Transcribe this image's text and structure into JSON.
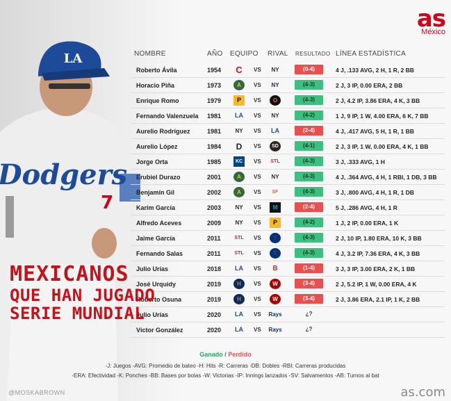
{
  "brand": {
    "logo": "as",
    "edition": "México",
    "footer": "as.com"
  },
  "credit": "@MOSKABROWN",
  "headers": {
    "name": "NOMBRE",
    "year": "AÑO",
    "team": "EQUIPO",
    "rival": "RIVAL",
    "result": "RESULTADO",
    "stats": "LÍNEA ESTADÍSTICA"
  },
  "vs": "VS",
  "rows": [
    {
      "name": "Roberto Ávila",
      "year": "1954",
      "team": "C",
      "rival": "NY",
      "result": "(0-4)",
      "status": "loss",
      "stats": "4 J, .133 AVG, 2 H, 1 R, 2 BB"
    },
    {
      "name": "Horacio Piña",
      "year": "1973",
      "team": "A",
      "rival": "NY",
      "result": "(4-3)",
      "status": "win",
      "stats": "2 J, 3 IP, 0.00 ERA, 2 BB"
    },
    {
      "name": "Enrique Romo",
      "year": "1979",
      "team": "P",
      "rival": "O",
      "result": "(4-3)",
      "status": "win",
      "stats": "2 J, 4.2 IP, 3.86 ERA, 4 K, 3 BB"
    },
    {
      "name": "Fernando Valenzuela",
      "year": "1981",
      "team": "LA",
      "rival": "NY",
      "result": "(4-2)",
      "status": "win",
      "stats": "1 J, 9 IP, 1 W, 4.00 ERA, 6 K, 7 BB"
    },
    {
      "name": "Aurelio Rodríguez",
      "year": "1981",
      "team": "NY",
      "rival": "LA",
      "result": "(2-4)",
      "status": "loss",
      "stats": "4 J, .417 AVG, 5 H, 1 R, 1 BB"
    },
    {
      "name": "Aurelio López",
      "year": "1984",
      "team": "D",
      "rival": "SD",
      "result": "(4-1)",
      "status": "win",
      "stats": "2 J, 3 IP, 1 W, 0.00 ERA, 4 K, 1 BB"
    },
    {
      "name": "Jorge Orta",
      "year": "1985",
      "team": "KC",
      "rival": "STL",
      "result": "(4-3)",
      "status": "win",
      "stats": "3 J, .333 AVG, 1 H"
    },
    {
      "name": "Erubiel Durazo",
      "year": "2001",
      "team": "A",
      "rival": "NY",
      "result": "(4-3)",
      "status": "win",
      "stats": "4 J, .364 AVG, 4 H, 1 RBI, 1 DB, 3 BB"
    },
    {
      "name": "Benjamín Gil",
      "year": "2002",
      "team": "A",
      "rival": "SF",
      "result": "(4-3)",
      "status": "win",
      "stats": "3 J, .800 AVG, 4 H, 1 R, 1 DB"
    },
    {
      "name": "Karim García",
      "year": "2003",
      "team": "NY",
      "rival": "M",
      "result": "(2-4)",
      "status": "loss",
      "stats": "5 J, .286 AVG, 4 H, 1 R"
    },
    {
      "name": "Alfredo Aceves",
      "year": "2009",
      "team": "NY",
      "rival": "P",
      "result": "(4-2)",
      "status": "win",
      "stats": "1 J, 2 IP, 0.00 ERA, 1 K"
    },
    {
      "name": "Jaime García",
      "year": "2011",
      "team": "STL",
      "rival": "T",
      "result": "(4-3)",
      "status": "win",
      "stats": "2 J, 10 IP, 1.80 ERA, 10 K, 3 BB"
    },
    {
      "name": "Fernando Salas",
      "year": "2011",
      "team": "STL",
      "rival": "T",
      "result": "(4-3)",
      "status": "win",
      "stats": "4 J, 3.2 IP, 7.36 ERA, 4 K, 3 BB"
    },
    {
      "name": "Julio Urías",
      "year": "2018",
      "team": "LA",
      "rival": "B",
      "result": "(1-4)",
      "status": "loss",
      "stats": "3 J, 3 IP, 3.00 ERA, 2 K, 1 BB"
    },
    {
      "name": "José Urquidy",
      "year": "2019",
      "team": "H",
      "rival": "W",
      "result": "(3-4)",
      "status": "loss",
      "stats": "2 J, 5.2 IP, 1 W, 0.00 ERA, 4 K"
    },
    {
      "name": "Roberto Osuna",
      "year": "2019",
      "team": "H",
      "rival": "W",
      "result": "(3-4)",
      "status": "loss",
      "stats": "2 J, 3.86 ERA, 2.1 IP, 1 K, 2 BB"
    },
    {
      "name": "Julio Urías",
      "year": "2020",
      "team": "LA",
      "rival": "Rays",
      "result": "¿?",
      "status": "none",
      "stats": ""
    },
    {
      "name": "Víctor González",
      "year": "2020",
      "team": "LA",
      "rival": "Rays",
      "result": "¿?",
      "status": "none",
      "stats": ""
    }
  ],
  "title": {
    "line1": "MEXICANOS",
    "line2": "QUE HAN JUGADO",
    "line3": "SERIE MUNDIAL"
  },
  "legend": {
    "win": "Ganado",
    "sep": "/",
    "loss": "Perdido"
  },
  "footnotes": [
    "-J: Juegos -AVG: Promedio de bateo -H: Hits -R: Carreras -DB: Dobles -RBI: Carreras producidas",
    "-ERA: Efectividad -K: Ponches -BB: Bases por bolas -W: Victorias -IP: Innings lanzados -SV: Salvamentos -AB: Turnos al bat"
  ],
  "colors": {
    "win": "#3fbf7f",
    "loss": "#e94f4f",
    "title": "#c4121a",
    "brand": "#d0021b"
  },
  "player_jersey": "Dodgers"
}
